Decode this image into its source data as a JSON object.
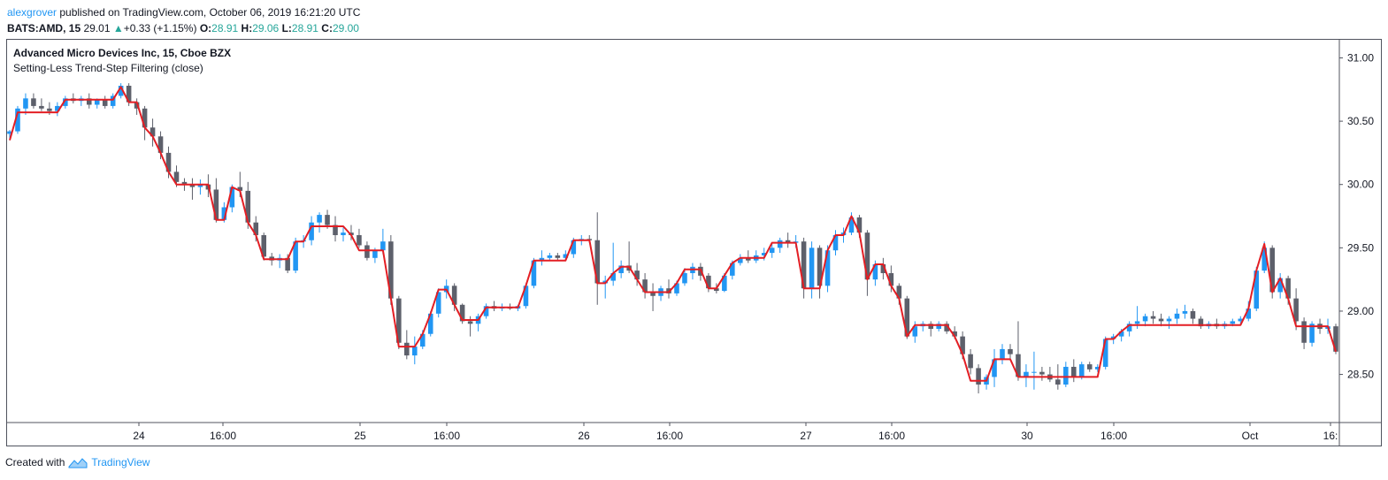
{
  "header": {
    "author": "alexgrover",
    "published": " published on TradingView.com, October 06, 2019 16:21:20 UTC",
    "symbol": "BATS:AMD, 15",
    "last": "29.01",
    "change": "+0.33 (+1.15%)",
    "o_label": "O:",
    "o_val": "28.91",
    "h_label": "H:",
    "h_val": "29.06",
    "l_label": "L:",
    "l_val": "28.91",
    "c_label": "C:",
    "c_val": "29.00"
  },
  "legend": {
    "title": "Advanced Micro Devices Inc, 15, Cboe BZX",
    "indicator": "Setting-Less Trend-Step Filtering (close)"
  },
  "footer": {
    "created_with": "Created with",
    "brand": "TradingView"
  },
  "colors": {
    "up": "#2196f3",
    "down": "#5d606b",
    "filter": "#e31e24",
    "axis": "#50535e"
  },
  "chart_data": {
    "type": "candlestick",
    "title": "Advanced Micro Devices Inc, 15, Cboe BZX",
    "ylim": [
      28.12,
      31.15
    ],
    "y_ticks": [
      "31.00",
      "30.50",
      "30.00",
      "29.50",
      "29.00",
      "28.50"
    ],
    "x_ticks": [
      "24",
      "16:00",
      "25",
      "16:00",
      "26",
      "16:00",
      "27",
      "16:00",
      "30",
      "16:00",
      "Oct",
      "16:"
    ],
    "candles": [
      {
        "o": 30.4,
        "h": 30.43,
        "l": 30.35,
        "c": 30.42
      },
      {
        "o": 30.42,
        "h": 30.62,
        "l": 30.4,
        "c": 30.6
      },
      {
        "o": 30.6,
        "h": 30.72,
        "l": 30.55,
        "c": 30.68
      },
      {
        "o": 30.68,
        "h": 30.72,
        "l": 30.6,
        "c": 30.62
      },
      {
        "o": 30.62,
        "h": 30.68,
        "l": 30.58,
        "c": 30.6
      },
      {
        "o": 30.6,
        "h": 30.65,
        "l": 30.55,
        "c": 30.58
      },
      {
        "o": 30.58,
        "h": 30.65,
        "l": 30.54,
        "c": 30.62
      },
      {
        "o": 30.62,
        "h": 30.7,
        "l": 30.6,
        "c": 30.68
      },
      {
        "o": 30.68,
        "h": 30.72,
        "l": 30.64,
        "c": 30.66
      },
      {
        "o": 30.66,
        "h": 30.7,
        "l": 30.62,
        "c": 30.68
      },
      {
        "o": 30.68,
        "h": 30.72,
        "l": 30.6,
        "c": 30.63
      },
      {
        "o": 30.63,
        "h": 30.68,
        "l": 30.6,
        "c": 30.67
      },
      {
        "o": 30.67,
        "h": 30.7,
        "l": 30.6,
        "c": 30.62
      },
      {
        "o": 30.62,
        "h": 30.72,
        "l": 30.6,
        "c": 30.7
      },
      {
        "o": 30.7,
        "h": 30.8,
        "l": 30.68,
        "c": 30.78
      },
      {
        "o": 30.78,
        "h": 30.8,
        "l": 30.62,
        "c": 30.65
      },
      {
        "o": 30.65,
        "h": 30.68,
        "l": 30.55,
        "c": 30.6
      },
      {
        "o": 30.6,
        "h": 30.62,
        "l": 30.35,
        "c": 30.45
      },
      {
        "o": 30.45,
        "h": 30.52,
        "l": 30.3,
        "c": 30.38
      },
      {
        "o": 30.38,
        "h": 30.42,
        "l": 30.2,
        "c": 30.25
      },
      {
        "o": 30.25,
        "h": 30.3,
        "l": 30.05,
        "c": 30.1
      },
      {
        "o": 30.1,
        "h": 30.15,
        "l": 29.98,
        "c": 30.02
      },
      {
        "o": 30.02,
        "h": 30.05,
        "l": 29.95,
        "c": 30.0
      },
      {
        "o": 30.0,
        "h": 30.05,
        "l": 29.88,
        "c": 29.98
      },
      {
        "o": 29.98,
        "h": 30.04,
        "l": 29.92,
        "c": 30.0
      },
      {
        "o": 30.0,
        "h": 30.08,
        "l": 29.9,
        "c": 29.96
      },
      {
        "o": 29.96,
        "h": 30.05,
        "l": 29.7,
        "c": 29.72
      },
      {
        "o": 29.72,
        "h": 29.86,
        "l": 29.7,
        "c": 29.82
      },
      {
        "o": 29.82,
        "h": 30.0,
        "l": 29.78,
        "c": 29.98
      },
      {
        "o": 29.98,
        "h": 30.1,
        "l": 29.9,
        "c": 29.95
      },
      {
        "o": 29.95,
        "h": 30.02,
        "l": 29.65,
        "c": 29.7
      },
      {
        "o": 29.7,
        "h": 29.75,
        "l": 29.55,
        "c": 29.6
      },
      {
        "o": 29.6,
        "h": 29.62,
        "l": 29.4,
        "c": 29.43
      },
      {
        "o": 29.43,
        "h": 29.46,
        "l": 29.36,
        "c": 29.4
      },
      {
        "o": 29.4,
        "h": 29.45,
        "l": 29.34,
        "c": 29.42
      },
      {
        "o": 29.42,
        "h": 29.45,
        "l": 29.3,
        "c": 29.32
      },
      {
        "o": 29.32,
        "h": 29.58,
        "l": 29.3,
        "c": 29.55
      },
      {
        "o": 29.55,
        "h": 29.6,
        "l": 29.5,
        "c": 29.56
      },
      {
        "o": 29.56,
        "h": 29.75,
        "l": 29.52,
        "c": 29.7
      },
      {
        "o": 29.7,
        "h": 29.78,
        "l": 29.62,
        "c": 29.76
      },
      {
        "o": 29.76,
        "h": 29.8,
        "l": 29.65,
        "c": 29.68
      },
      {
        "o": 29.68,
        "h": 29.75,
        "l": 29.55,
        "c": 29.6
      },
      {
        "o": 29.6,
        "h": 29.66,
        "l": 29.55,
        "c": 29.62
      },
      {
        "o": 29.62,
        "h": 29.68,
        "l": 29.56,
        "c": 29.6
      },
      {
        "o": 29.6,
        "h": 29.65,
        "l": 29.5,
        "c": 29.52
      },
      {
        "o": 29.52,
        "h": 29.55,
        "l": 29.4,
        "c": 29.42
      },
      {
        "o": 29.42,
        "h": 29.5,
        "l": 29.38,
        "c": 29.48
      },
      {
        "o": 29.48,
        "h": 29.65,
        "l": 29.45,
        "c": 29.55
      },
      {
        "o": 29.55,
        "h": 29.6,
        "l": 29.05,
        "c": 29.1
      },
      {
        "o": 29.1,
        "h": 29.12,
        "l": 28.7,
        "c": 28.75
      },
      {
        "o": 28.75,
        "h": 28.85,
        "l": 28.62,
        "c": 28.65
      },
      {
        "o": 28.65,
        "h": 28.8,
        "l": 28.58,
        "c": 28.72
      },
      {
        "o": 28.72,
        "h": 28.85,
        "l": 28.7,
        "c": 28.82
      },
      {
        "o": 28.82,
        "h": 29.0,
        "l": 28.8,
        "c": 28.98
      },
      {
        "o": 28.98,
        "h": 29.18,
        "l": 28.95,
        "c": 29.15
      },
      {
        "o": 29.15,
        "h": 29.25,
        "l": 29.1,
        "c": 29.2
      },
      {
        "o": 29.2,
        "h": 29.22,
        "l": 29.0,
        "c": 29.05
      },
      {
        "o": 29.05,
        "h": 29.06,
        "l": 28.9,
        "c": 28.92
      },
      {
        "o": 28.92,
        "h": 28.96,
        "l": 28.8,
        "c": 28.9
      },
      {
        "o": 28.9,
        "h": 28.98,
        "l": 28.84,
        "c": 28.96
      },
      {
        "o": 28.96,
        "h": 29.06,
        "l": 28.94,
        "c": 29.04
      },
      {
        "o": 29.04,
        "h": 29.08,
        "l": 29.0,
        "c": 29.02
      },
      {
        "o": 29.02,
        "h": 29.06,
        "l": 29.0,
        "c": 29.03
      },
      {
        "o": 29.03,
        "h": 29.06,
        "l": 29.01,
        "c": 29.02
      },
      {
        "o": 29.02,
        "h": 29.05,
        "l": 29.0,
        "c": 29.04
      },
      {
        "o": 29.04,
        "h": 29.22,
        "l": 29.02,
        "c": 29.2
      },
      {
        "o": 29.2,
        "h": 29.42,
        "l": 29.18,
        "c": 29.4
      },
      {
        "o": 29.4,
        "h": 29.48,
        "l": 29.36,
        "c": 29.42
      },
      {
        "o": 29.42,
        "h": 29.46,
        "l": 29.4,
        "c": 29.44
      },
      {
        "o": 29.44,
        "h": 29.46,
        "l": 29.4,
        "c": 29.42
      },
      {
        "o": 29.42,
        "h": 29.48,
        "l": 29.4,
        "c": 29.45
      },
      {
        "o": 29.45,
        "h": 29.58,
        "l": 29.42,
        "c": 29.56
      },
      {
        "o": 29.56,
        "h": 29.6,
        "l": 29.52,
        "c": 29.57
      },
      {
        "o": 29.57,
        "h": 29.6,
        "l": 29.54,
        "c": 29.56
      },
      {
        "o": 29.56,
        "h": 29.78,
        "l": 29.05,
        "c": 29.22
      },
      {
        "o": 29.22,
        "h": 29.28,
        "l": 29.1,
        "c": 29.24
      },
      {
        "o": 29.24,
        "h": 29.54,
        "l": 29.2,
        "c": 29.3
      },
      {
        "o": 29.3,
        "h": 29.4,
        "l": 29.26,
        "c": 29.36
      },
      {
        "o": 29.36,
        "h": 29.55,
        "l": 29.3,
        "c": 29.32
      },
      {
        "o": 29.32,
        "h": 29.38,
        "l": 29.2,
        "c": 29.25
      },
      {
        "o": 29.25,
        "h": 29.3,
        "l": 29.1,
        "c": 29.15
      },
      {
        "o": 29.15,
        "h": 29.22,
        "l": 29.0,
        "c": 29.12
      },
      {
        "o": 29.12,
        "h": 29.2,
        "l": 29.08,
        "c": 29.18
      },
      {
        "o": 29.18,
        "h": 29.25,
        "l": 29.1,
        "c": 29.14
      },
      {
        "o": 29.14,
        "h": 29.24,
        "l": 29.12,
        "c": 29.22
      },
      {
        "o": 29.22,
        "h": 29.34,
        "l": 29.2,
        "c": 29.3
      },
      {
        "o": 29.3,
        "h": 29.38,
        "l": 29.25,
        "c": 29.35
      },
      {
        "o": 29.35,
        "h": 29.38,
        "l": 29.24,
        "c": 29.28
      },
      {
        "o": 29.28,
        "h": 29.3,
        "l": 29.15,
        "c": 29.18
      },
      {
        "o": 29.18,
        "h": 29.22,
        "l": 29.14,
        "c": 29.16
      },
      {
        "o": 29.16,
        "h": 29.3,
        "l": 29.15,
        "c": 29.28
      },
      {
        "o": 29.28,
        "h": 29.4,
        "l": 29.25,
        "c": 29.38
      },
      {
        "o": 29.38,
        "h": 29.45,
        "l": 29.36,
        "c": 29.42
      },
      {
        "o": 29.42,
        "h": 29.48,
        "l": 29.38,
        "c": 29.4
      },
      {
        "o": 29.4,
        "h": 29.48,
        "l": 29.38,
        "c": 29.44
      },
      {
        "o": 29.44,
        "h": 29.5,
        "l": 29.4,
        "c": 29.46
      },
      {
        "o": 29.46,
        "h": 29.54,
        "l": 29.42,
        "c": 29.5
      },
      {
        "o": 29.5,
        "h": 29.58,
        "l": 29.46,
        "c": 29.56
      },
      {
        "o": 29.56,
        "h": 29.62,
        "l": 29.5,
        "c": 29.54
      },
      {
        "o": 29.54,
        "h": 29.6,
        "l": 29.5,
        "c": 29.55
      },
      {
        "o": 29.55,
        "h": 29.58,
        "l": 29.1,
        "c": 29.18
      },
      {
        "o": 29.18,
        "h": 29.55,
        "l": 29.1,
        "c": 29.5
      },
      {
        "o": 29.5,
        "h": 29.52,
        "l": 29.1,
        "c": 29.2
      },
      {
        "o": 29.2,
        "h": 29.52,
        "l": 29.15,
        "c": 29.48
      },
      {
        "o": 29.48,
        "h": 29.64,
        "l": 29.44,
        "c": 29.6
      },
      {
        "o": 29.6,
        "h": 29.66,
        "l": 29.54,
        "c": 29.62
      },
      {
        "o": 29.62,
        "h": 29.78,
        "l": 29.6,
        "c": 29.74
      },
      {
        "o": 29.74,
        "h": 29.76,
        "l": 29.58,
        "c": 29.62
      },
      {
        "o": 29.62,
        "h": 29.64,
        "l": 29.12,
        "c": 29.25
      },
      {
        "o": 29.25,
        "h": 29.4,
        "l": 29.2,
        "c": 29.37
      },
      {
        "o": 29.37,
        "h": 29.42,
        "l": 29.25,
        "c": 29.3
      },
      {
        "o": 29.3,
        "h": 29.36,
        "l": 29.15,
        "c": 29.2
      },
      {
        "o": 29.2,
        "h": 29.22,
        "l": 29.05,
        "c": 29.1
      },
      {
        "o": 29.1,
        "h": 29.12,
        "l": 28.78,
        "c": 28.8
      },
      {
        "o": 28.8,
        "h": 28.92,
        "l": 28.75,
        "c": 28.88
      },
      {
        "o": 28.88,
        "h": 28.92,
        "l": 28.84,
        "c": 28.9
      },
      {
        "o": 28.9,
        "h": 28.92,
        "l": 28.8,
        "c": 28.86
      },
      {
        "o": 28.86,
        "h": 28.92,
        "l": 28.84,
        "c": 28.9
      },
      {
        "o": 28.9,
        "h": 28.92,
        "l": 28.82,
        "c": 28.84
      },
      {
        "o": 28.84,
        "h": 28.88,
        "l": 28.78,
        "c": 28.8
      },
      {
        "o": 28.8,
        "h": 28.84,
        "l": 28.62,
        "c": 28.66
      },
      {
        "o": 28.66,
        "h": 28.7,
        "l": 28.5,
        "c": 28.55
      },
      {
        "o": 28.55,
        "h": 28.58,
        "l": 28.35,
        "c": 28.42
      },
      {
        "o": 28.42,
        "h": 28.5,
        "l": 28.38,
        "c": 28.48
      },
      {
        "o": 28.48,
        "h": 28.7,
        "l": 28.4,
        "c": 28.62
      },
      {
        "o": 28.62,
        "h": 28.74,
        "l": 28.58,
        "c": 28.7
      },
      {
        "o": 28.7,
        "h": 28.74,
        "l": 28.62,
        "c": 28.66
      },
      {
        "o": 28.66,
        "h": 28.92,
        "l": 28.45,
        "c": 28.48
      },
      {
        "o": 28.48,
        "h": 28.58,
        "l": 28.4,
        "c": 28.52
      },
      {
        "o": 28.52,
        "h": 28.68,
        "l": 28.38,
        "c": 28.52
      },
      {
        "o": 28.52,
        "h": 28.56,
        "l": 28.45,
        "c": 28.5
      },
      {
        "o": 28.5,
        "h": 28.56,
        "l": 28.44,
        "c": 28.46
      },
      {
        "o": 28.46,
        "h": 28.58,
        "l": 28.38,
        "c": 28.42
      },
      {
        "o": 28.42,
        "h": 28.6,
        "l": 28.4,
        "c": 28.56
      },
      {
        "o": 28.56,
        "h": 28.62,
        "l": 28.44,
        "c": 28.48
      },
      {
        "o": 28.48,
        "h": 28.6,
        "l": 28.46,
        "c": 28.58
      },
      {
        "o": 28.58,
        "h": 28.6,
        "l": 28.52,
        "c": 28.54
      },
      {
        "o": 28.54,
        "h": 28.58,
        "l": 28.52,
        "c": 28.56
      },
      {
        "o": 28.56,
        "h": 28.8,
        "l": 28.54,
        "c": 28.78
      },
      {
        "o": 28.78,
        "h": 28.82,
        "l": 28.74,
        "c": 28.8
      },
      {
        "o": 28.8,
        "h": 28.86,
        "l": 28.76,
        "c": 28.84
      },
      {
        "o": 28.84,
        "h": 28.92,
        "l": 28.8,
        "c": 28.9
      },
      {
        "o": 28.9,
        "h": 29.04,
        "l": 28.86,
        "c": 28.92
      },
      {
        "o": 28.92,
        "h": 28.98,
        "l": 28.88,
        "c": 28.96
      },
      {
        "o": 28.96,
        "h": 29.0,
        "l": 28.9,
        "c": 28.94
      },
      {
        "o": 28.94,
        "h": 28.98,
        "l": 28.88,
        "c": 28.92
      },
      {
        "o": 28.92,
        "h": 28.96,
        "l": 28.86,
        "c": 28.94
      },
      {
        "o": 28.94,
        "h": 29.02,
        "l": 28.9,
        "c": 28.98
      },
      {
        "o": 28.98,
        "h": 29.05,
        "l": 28.94,
        "c": 29.0
      },
      {
        "o": 29.0,
        "h": 29.02,
        "l": 28.9,
        "c": 28.94
      },
      {
        "o": 28.94,
        "h": 28.96,
        "l": 28.86,
        "c": 28.88
      },
      {
        "o": 28.88,
        "h": 28.92,
        "l": 28.86,
        "c": 28.9
      },
      {
        "o": 28.9,
        "h": 28.94,
        "l": 28.86,
        "c": 28.88
      },
      {
        "o": 28.88,
        "h": 28.92,
        "l": 28.86,
        "c": 28.9
      },
      {
        "o": 28.9,
        "h": 28.94,
        "l": 28.88,
        "c": 28.92
      },
      {
        "o": 28.92,
        "h": 28.96,
        "l": 28.9,
        "c": 28.94
      },
      {
        "o": 28.94,
        "h": 29.08,
        "l": 28.92,
        "c": 29.02
      },
      {
        "o": 29.02,
        "h": 29.35,
        "l": 29.0,
        "c": 29.32
      },
      {
        "o": 29.32,
        "h": 29.55,
        "l": 29.3,
        "c": 29.5
      },
      {
        "o": 29.5,
        "h": 29.52,
        "l": 29.1,
        "c": 29.15
      },
      {
        "o": 29.15,
        "h": 29.3,
        "l": 29.1,
        "c": 29.26
      },
      {
        "o": 29.26,
        "h": 29.28,
        "l": 29.05,
        "c": 29.1
      },
      {
        "o": 29.1,
        "h": 29.18,
        "l": 28.85,
        "c": 28.92
      },
      {
        "o": 28.92,
        "h": 28.95,
        "l": 28.7,
        "c": 28.75
      },
      {
        "o": 28.75,
        "h": 28.92,
        "l": 28.72,
        "c": 28.9
      },
      {
        "o": 28.9,
        "h": 28.94,
        "l": 28.82,
        "c": 28.86
      },
      {
        "o": 28.86,
        "h": 28.94,
        "l": 28.82,
        "c": 28.88
      },
      {
        "o": 28.88,
        "h": 28.9,
        "l": 28.66,
        "c": 28.68
      }
    ],
    "filter": [
      30.35,
      30.57,
      30.57,
      30.57,
      30.57,
      30.57,
      30.57,
      30.67,
      30.67,
      30.67,
      30.67,
      30.67,
      30.67,
      30.67,
      30.77,
      30.65,
      30.65,
      30.45,
      30.38,
      30.25,
      30.1,
      30.0,
      30.0,
      30.0,
      30.0,
      30.0,
      29.72,
      29.72,
      29.98,
      29.95,
      29.7,
      29.6,
      29.41,
      29.41,
      29.41,
      29.41,
      29.55,
      29.55,
      29.67,
      29.67,
      29.67,
      29.67,
      29.67,
      29.6,
      29.48,
      29.48,
      29.48,
      29.48,
      29.1,
      28.72,
      28.72,
      28.72,
      28.82,
      28.98,
      29.17,
      29.17,
      29.05,
      28.93,
      28.93,
      28.93,
      29.03,
      29.03,
      29.03,
      29.03,
      29.03,
      29.2,
      29.4,
      29.4,
      29.4,
      29.4,
      29.4,
      29.56,
      29.56,
      29.56,
      29.22,
      29.22,
      29.3,
      29.35,
      29.35,
      29.25,
      29.15,
      29.15,
      29.15,
      29.15,
      29.22,
      29.33,
      29.33,
      29.33,
      29.18,
      29.18,
      29.28,
      29.38,
      29.42,
      29.42,
      29.42,
      29.42,
      29.54,
      29.54,
      29.54,
      29.54,
      29.18,
      29.18,
      29.18,
      29.48,
      29.6,
      29.6,
      29.75,
      29.62,
      29.25,
      29.37,
      29.37,
      29.2,
      29.1,
      28.8,
      28.89,
      28.89,
      28.89,
      28.89,
      28.89,
      28.8,
      28.66,
      28.45,
      28.45,
      28.45,
      28.62,
      28.62,
      28.62,
      28.48,
      28.48,
      28.48,
      28.48,
      28.48,
      28.48,
      28.48,
      28.48,
      28.48,
      28.48,
      28.48,
      28.78,
      28.78,
      28.84,
      28.89,
      28.89,
      28.89,
      28.89,
      28.89,
      28.89,
      28.89,
      28.89,
      28.89,
      28.89,
      28.89,
      28.89,
      28.89,
      28.89,
      28.89,
      29.02,
      29.32,
      29.53,
      29.15,
      29.26,
      29.1,
      28.88,
      28.88,
      28.88,
      28.88,
      28.88,
      28.68
    ]
  }
}
